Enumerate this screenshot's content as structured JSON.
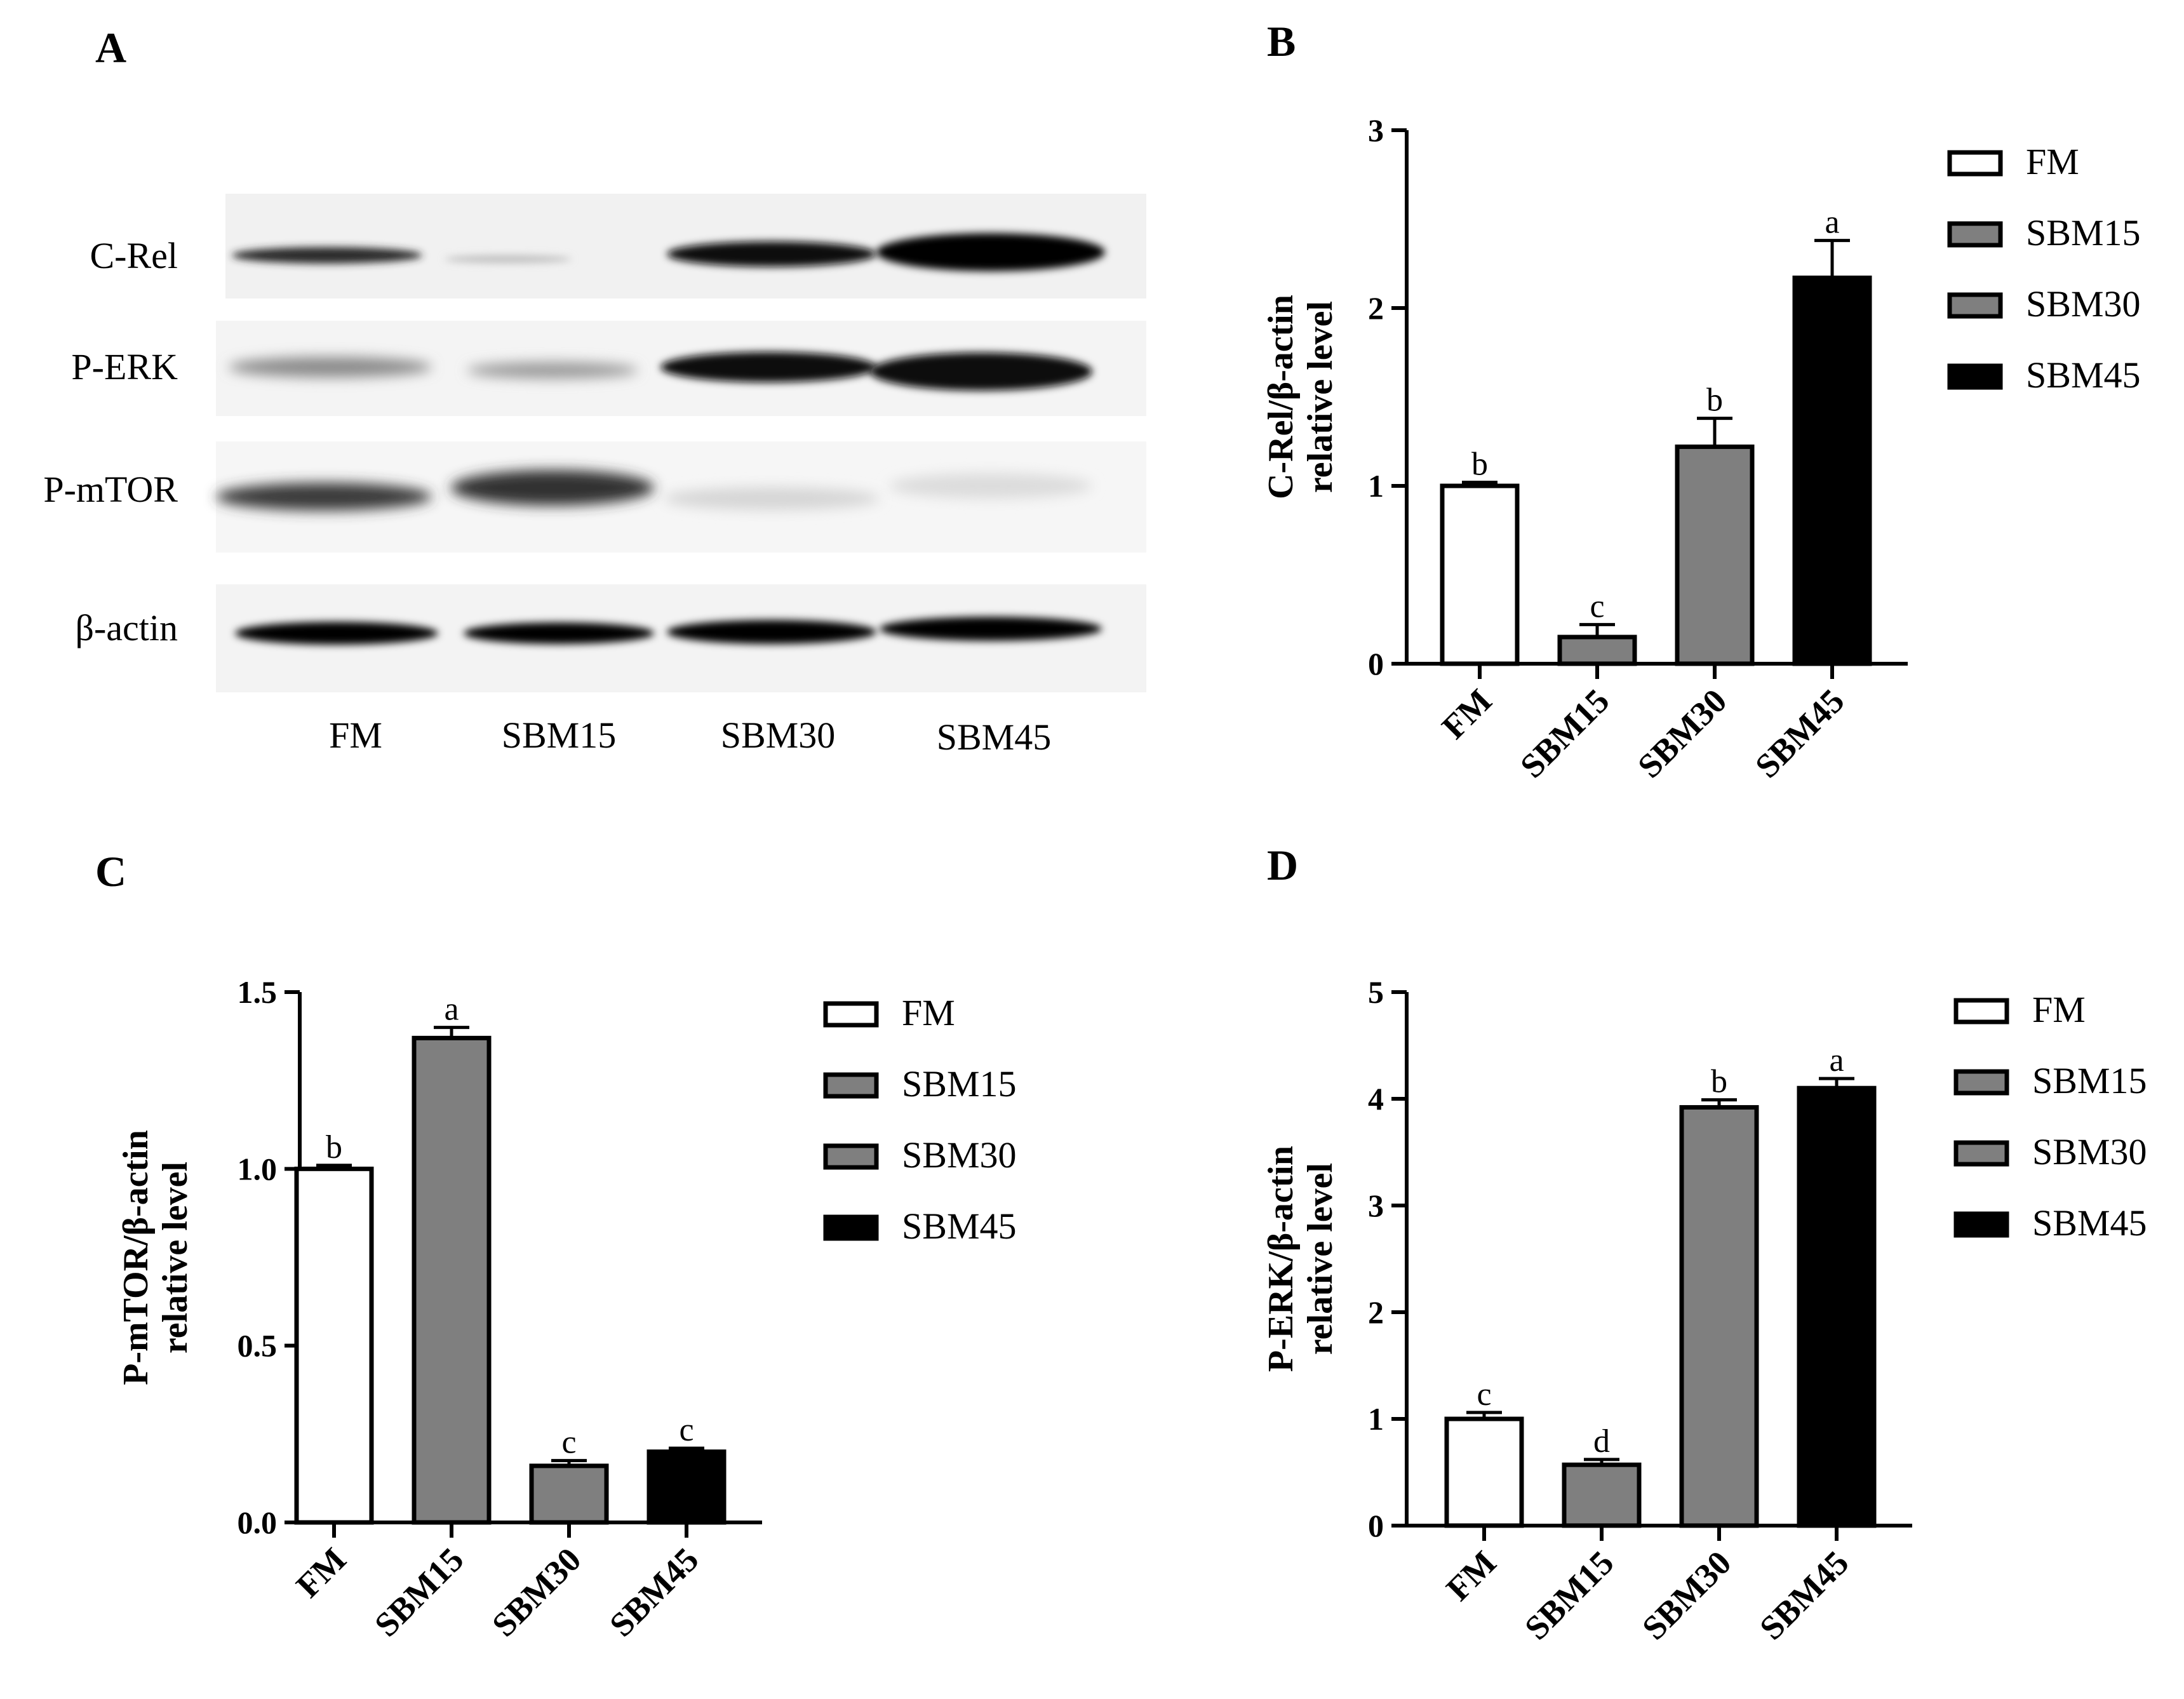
{
  "panel_letters": {
    "a": "A",
    "b": "B",
    "c": "C",
    "d": "D"
  },
  "blot": {
    "row_labels": [
      "C-Rel",
      "P-ERK",
      "P-mTOR",
      "β-actin"
    ],
    "lane_labels": [
      "FM",
      "SBM15",
      "SBM30",
      "SBM45"
    ]
  },
  "legend": {
    "items": [
      {
        "name": "FM",
        "color": "#ffffff"
      },
      {
        "name": "SBM15",
        "color": "#7f7f7f"
      },
      {
        "name": "SBM30",
        "color": "#7f7f7f"
      },
      {
        "name": "SBM45",
        "color": "#000000"
      }
    ]
  },
  "chart_data": [
    {
      "panel": "B",
      "type": "bar",
      "categories": [
        "FM",
        "SBM15",
        "SBM30",
        "SBM45"
      ],
      "values": [
        1.0,
        0.15,
        1.22,
        2.17
      ],
      "errors": [
        0.02,
        0.07,
        0.16,
        0.21
      ],
      "significance": [
        "b",
        "c",
        "b",
        "a"
      ],
      "colors": [
        "#ffffff",
        "#7f7f7f",
        "#7f7f7f",
        "#000000"
      ],
      "ylabel_line1": "C-Rel/β-actin",
      "ylabel_line2": "relative level",
      "ylim": [
        0,
        3
      ],
      "yticks": [
        0,
        1,
        2,
        3
      ],
      "ytick_labels": [
        "0",
        "1",
        "2",
        "3"
      ],
      "legend_position": "right"
    },
    {
      "panel": "C",
      "type": "bar",
      "categories": [
        "FM",
        "SBM15",
        "SBM30",
        "SBM45"
      ],
      "values": [
        1.0,
        1.37,
        0.16,
        0.2
      ],
      "errors": [
        0.01,
        0.03,
        0.015,
        0.01
      ],
      "significance": [
        "b",
        "a",
        "c",
        "c"
      ],
      "colors": [
        "#ffffff",
        "#7f7f7f",
        "#7f7f7f",
        "#000000"
      ],
      "ylabel_line1": "P-mTOR/β-actin",
      "ylabel_line2": "relative level",
      "ylim": [
        0,
        1.5
      ],
      "yticks": [
        0,
        0.5,
        1.0,
        1.5
      ],
      "ytick_labels": [
        "0.0",
        "0.5",
        "1.0",
        "1.5"
      ],
      "legend_position": "right"
    },
    {
      "panel": "D",
      "type": "bar",
      "categories": [
        "FM",
        "SBM15",
        "SBM30",
        "SBM45"
      ],
      "values": [
        1.0,
        0.57,
        3.92,
        4.1
      ],
      "errors": [
        0.06,
        0.05,
        0.07,
        0.09
      ],
      "significance": [
        "c",
        "d",
        "b",
        "a"
      ],
      "colors": [
        "#ffffff",
        "#7f7f7f",
        "#7f7f7f",
        "#000000"
      ],
      "ylabel_line1": "P-ERK/β-actin",
      "ylabel_line2": "relative level",
      "ylim": [
        0,
        5
      ],
      "yticks": [
        0,
        1,
        2,
        3,
        4,
        5
      ],
      "ytick_labels": [
        "0",
        "1",
        "2",
        "3",
        "4",
        "5"
      ],
      "legend_position": "right"
    }
  ]
}
